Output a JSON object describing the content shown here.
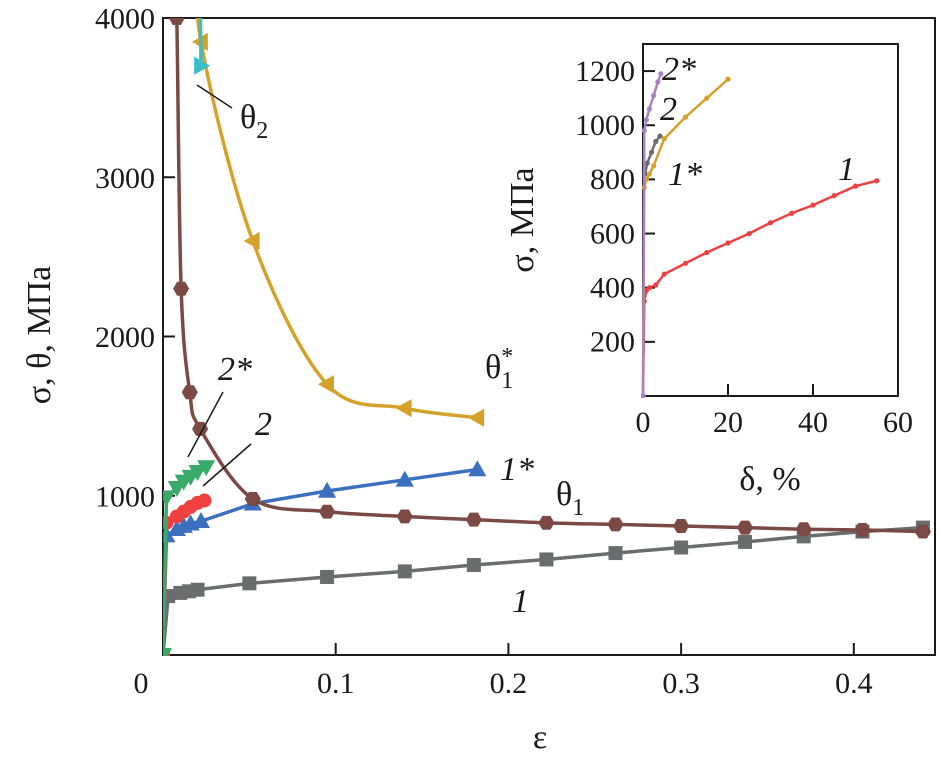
{
  "chart_data": [
    {
      "type": "line",
      "title": "",
      "xlabel": "ε",
      "ylabel": "σ, θ, МПа",
      "xlim": [
        0,
        0.447
      ],
      "ylim": [
        0,
        4000
      ],
      "xticks": [
        "0",
        "0.1",
        "0.2",
        "0.3",
        "0.4"
      ],
      "xtick_values": [
        0,
        0.1,
        0.2,
        0.3,
        0.4
      ],
      "yticks": [
        "1000",
        "2000",
        "3000",
        "4000"
      ],
      "ytick_values": [
        1000,
        2000,
        3000,
        4000
      ],
      "grid": false,
      "series": [
        {
          "name": "1",
          "color": "#6b6c6e",
          "marker": "square",
          "x": [
            0,
            0.003,
            0.01,
            0.015,
            0.02,
            0.05,
            0.095,
            0.14,
            0.18,
            0.222,
            0.262,
            0.3,
            0.337,
            0.371,
            0.405,
            0.44
          ],
          "y": [
            0,
            370,
            390,
            400,
            410,
            450,
            490,
            525,
            565,
            600,
            640,
            675,
            710,
            745,
            775,
            800
          ]
        },
        {
          "name": "1*",
          "color": "#3b6fc0",
          "marker": "triangle-up",
          "x": [
            0,
            0.002,
            0.008,
            0.012,
            0.016,
            0.022,
            0.052,
            0.095,
            0.14,
            0.182
          ],
          "y": [
            0,
            750,
            790,
            810,
            825,
            840,
            950,
            1030,
            1100,
            1165
          ]
        },
        {
          "name": "2",
          "color": "#ee4040",
          "marker": "circle",
          "x": [
            0,
            0.002,
            0.008,
            0.012,
            0.016,
            0.02,
            0.024
          ],
          "y": [
            0,
            830,
            870,
            900,
            930,
            955,
            970
          ]
        },
        {
          "name": "2*",
          "color": "#3aaa6a",
          "marker": "triangle-down",
          "x": [
            0,
            0.002,
            0.008,
            0.012,
            0.016,
            0.02,
            0.025
          ],
          "y": [
            0,
            990,
            1050,
            1090,
            1120,
            1150,
            1180
          ]
        },
        {
          "name": "θ1",
          "color": "#7b4a45",
          "marker": "hexagon",
          "smooth": true,
          "x": [
            0.006,
            0.008,
            0.0105,
            0.0155,
            0.0215,
            0.052,
            0.095,
            0.14,
            0.18,
            0.222,
            0.262,
            0.3,
            0.337,
            0.371,
            0.405,
            0.44
          ],
          "y": [
            5000,
            4000,
            2300,
            1650,
            1420,
            980,
            900,
            870,
            850,
            830,
            820,
            810,
            800,
            790,
            785,
            775
          ]
        },
        {
          "name": "θ1*",
          "color": "#d4a22a",
          "marker": "triangle-left",
          "smooth": true,
          "markerless_first": true,
          "x": [
            0.02,
            0.022,
            0.052,
            0.095,
            0.14,
            0.182
          ],
          "y": [
            4500,
            3850,
            2600,
            1700,
            1550,
            1490
          ]
        },
        {
          "name": "θ2",
          "color": "#3abfc8",
          "marker": "triangle-right",
          "x": [
            0.0215,
            0.022
          ],
          "y": [
            4200,
            3700
          ]
        }
      ],
      "annotations": [
        "θ2",
        "2*",
        "2",
        "θ1*",
        "1*",
        "θ1",
        "1"
      ]
    },
    {
      "type": "line",
      "title": "",
      "xlabel": "δ, %",
      "ylabel": "σ, МПа",
      "xlim": [
        0,
        60
      ],
      "ylim": [
        0,
        1300
      ],
      "xticks": [
        "0",
        "20",
        "40",
        "60"
      ],
      "xtick_values": [
        0,
        20,
        40,
        60
      ],
      "yticks": [
        "200",
        "400",
        "600",
        "800",
        "1000",
        "1200"
      ],
      "ytick_values": [
        200,
        400,
        600,
        800,
        1000,
        1200
      ],
      "grid": false,
      "series": [
        {
          "name": "1",
          "color": "#ee4040",
          "x": [
            0,
            0.3,
            0.8,
            1.5,
            3,
            5,
            10,
            15,
            20,
            25,
            30,
            35,
            40,
            45,
            50,
            55
          ],
          "y": [
            0,
            350,
            390,
            400,
            410,
            450,
            490,
            530,
            565,
            600,
            640,
            675,
            705,
            740,
            775,
            795
          ]
        },
        {
          "name": "1*",
          "color": "#6b6c6e",
          "x": [
            0.5,
            1,
            2,
            3,
            4
          ],
          "y": [
            820,
            860,
            900,
            940,
            960
          ]
        },
        {
          "name": "2",
          "color": "#d4a22a",
          "x": [
            0,
            0.3,
            0.8,
            1.5,
            2.5,
            5,
            10,
            15,
            20
          ],
          "y": [
            0,
            770,
            800,
            820,
            850,
            950,
            1030,
            1100,
            1170
          ]
        },
        {
          "name": "2*",
          "color": "#a883c0",
          "x": [
            0,
            0.3,
            0.8,
            1.5,
            2.5,
            3.5,
            4.2
          ],
          "y": [
            0,
            980,
            1020,
            1060,
            1110,
            1160,
            1190
          ]
        }
      ],
      "annotations": [
        "2*",
        "2",
        "1*",
        "1"
      ]
    }
  ]
}
